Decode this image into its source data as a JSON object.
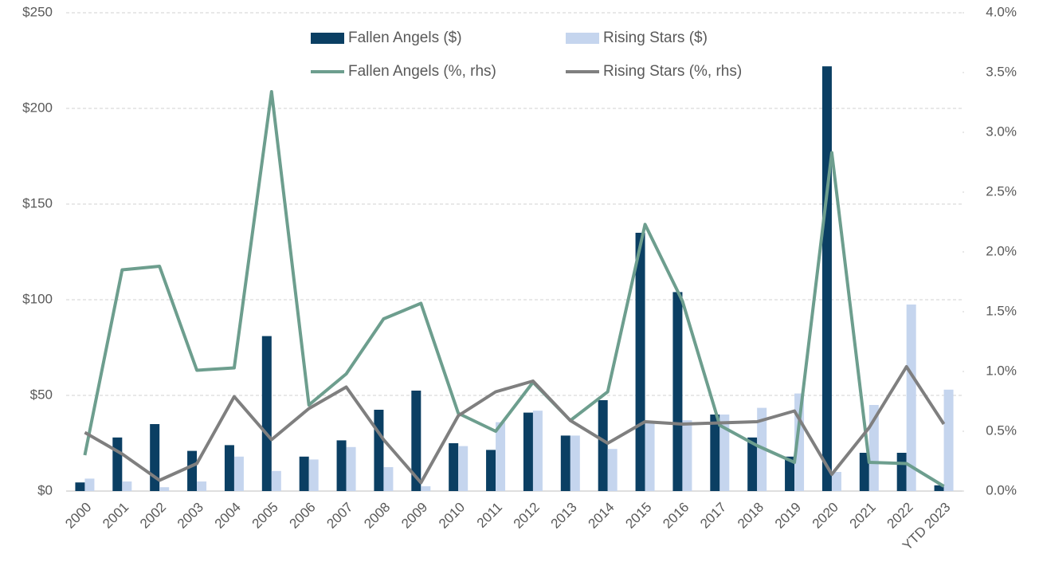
{
  "chart_data": {
    "type": "bar_line",
    "categories": [
      "2000",
      "2001",
      "2002",
      "2003",
      "2004",
      "2005",
      "2006",
      "2007",
      "2008",
      "2009",
      "2010",
      "2011",
      "2012",
      "2013",
      "2014",
      "2015",
      "2016",
      "2017",
      "2018",
      "2019",
      "2020",
      "2021",
      "2022",
      "YTD 2023"
    ],
    "series": [
      {
        "name": "Fallen Angels ($)",
        "type": "bar",
        "color": "#0b3f63",
        "values": [
          4.5,
          28,
          35,
          21,
          24,
          81,
          18,
          26.5,
          42.5,
          52.5,
          25,
          21.5,
          41,
          29,
          47.5,
          135,
          104,
          40,
          28,
          18,
          222,
          20,
          20,
          3
        ]
      },
      {
        "name": "Rising Stars ($)",
        "type": "bar",
        "color": "#c5d5ee",
        "values": [
          6.5,
          5,
          2,
          5,
          18,
          10.5,
          16.5,
          23,
          12.5,
          2.5,
          23.5,
          36,
          42,
          29,
          22,
          36,
          37,
          40,
          43.5,
          51,
          10,
          45,
          97.5,
          53
        ]
      },
      {
        "name": "Fallen Angels (%, rhs)",
        "type": "line",
        "axis": "y2",
        "color": "#6d9e8e",
        "values": [
          0.3,
          1.85,
          1.88,
          1.01,
          1.03,
          3.34,
          0.72,
          0.98,
          1.44,
          1.57,
          0.65,
          0.5,
          0.91,
          0.59,
          0.83,
          2.23,
          1.59,
          0.55,
          0.38,
          0.24,
          2.83,
          0.24,
          0.23,
          0.04
        ]
      },
      {
        "name": "Rising Stars (%, rhs)",
        "type": "line",
        "axis": "y2",
        "color": "#7f7f7f",
        "values": [
          0.49,
          0.31,
          0.09,
          0.23,
          0.79,
          0.43,
          0.69,
          0.87,
          0.43,
          0.07,
          0.63,
          0.83,
          0.92,
          0.59,
          0.4,
          0.58,
          0.56,
          0.57,
          0.58,
          0.67,
          0.14,
          0.53,
          1.04,
          0.56
        ]
      }
    ],
    "ylim": [
      0,
      250
    ],
    "yticks": [
      {
        "value": 0,
        "label": "$0"
      },
      {
        "value": 50,
        "label": "$50"
      },
      {
        "value": 100,
        "label": "$100"
      },
      {
        "value": 150,
        "label": "$150"
      },
      {
        "value": 200,
        "label": "$200"
      },
      {
        "value": 250,
        "label": "$250"
      }
    ],
    "y2lim": [
      0,
      4
    ],
    "y2ticks": [
      {
        "value": 0,
        "label": "0.0%"
      },
      {
        "value": 0.5,
        "label": "0.5%"
      },
      {
        "value": 1,
        "label": "1.0%"
      },
      {
        "value": 1.5,
        "label": "1.5%"
      },
      {
        "value": 2,
        "label": "2.0%"
      },
      {
        "value": 2.5,
        "label": "2.5%"
      },
      {
        "value": 3,
        "label": "3.0%"
      },
      {
        "value": 3.5,
        "label": "3.5%"
      },
      {
        "value": 4,
        "label": "4.0%"
      }
    ],
    "grid": true,
    "legend": "top-center"
  }
}
